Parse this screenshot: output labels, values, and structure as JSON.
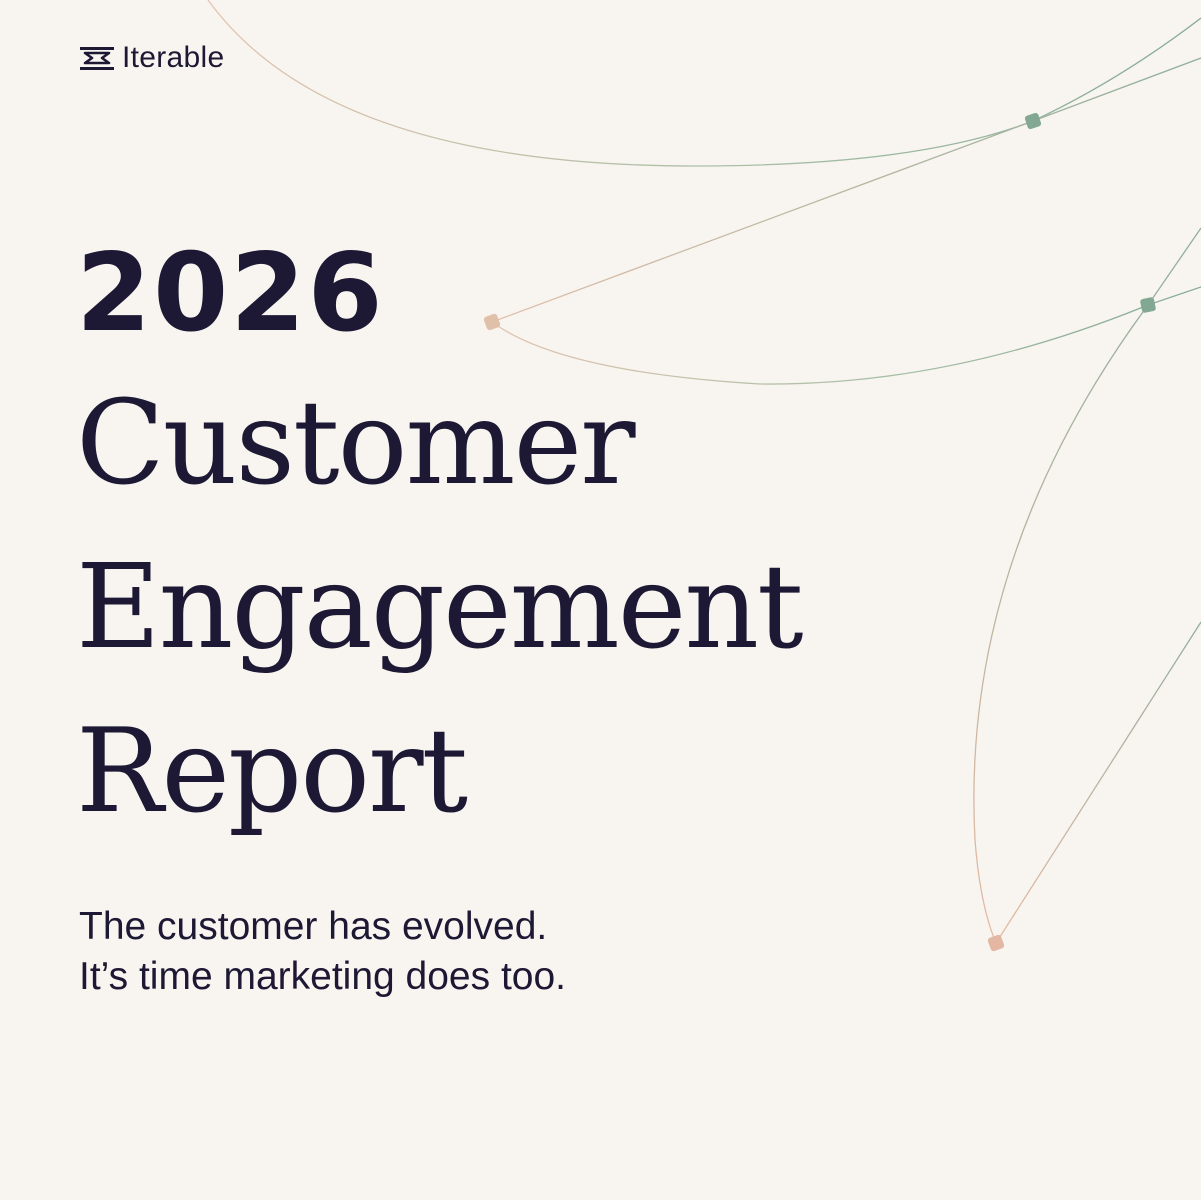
{
  "brand": {
    "name": "Iterable",
    "logo_icon": "iterable-logo-icon"
  },
  "headline": {
    "year": "2026",
    "lines": [
      "Customer",
      "Engagement",
      "Report"
    ]
  },
  "subtitle": {
    "lines": [
      "The customer has evolved.",
      "It’s time marketing does too."
    ]
  },
  "colors": {
    "background": "#f8f5f1",
    "text": "#1d1833",
    "line_green": "#8fae9a",
    "line_peach": "#e2bca6",
    "node_green": "#82a793",
    "node_peach": "#e3b7a1"
  }
}
